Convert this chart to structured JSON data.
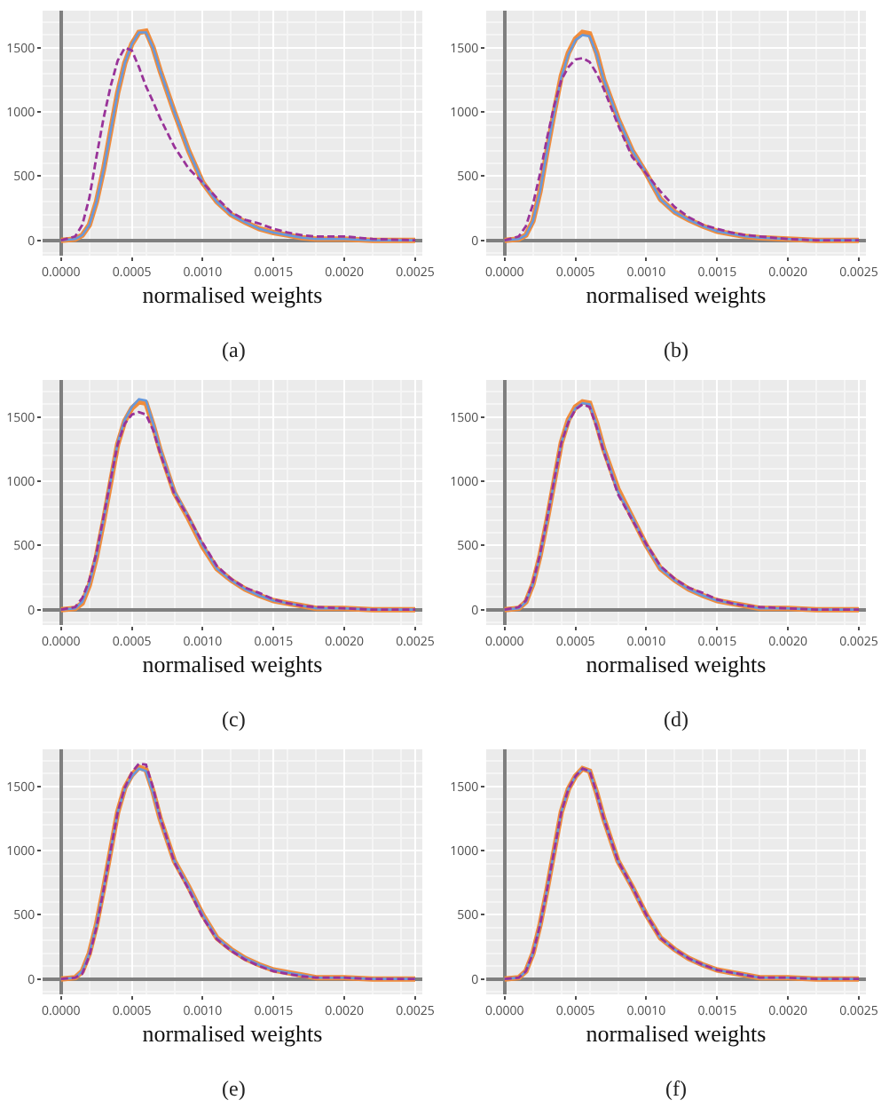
{
  "chart_data": [
    {
      "type": "line",
      "xlabel": "normalised weights",
      "annotations": [
        "(a)"
      ],
      "grid": true,
      "xlim": [
        -0.00013,
        0.00255
      ],
      "ylim": [
        -120,
        1790
      ],
      "xticks": [
        {
          "value": 0,
          "label": "0.0000"
        },
        {
          "value": 0.0005,
          "label": "0.0005"
        },
        {
          "value": 0.001,
          "label": "0.0010"
        },
        {
          "value": 0.0015,
          "label": "0.0015"
        },
        {
          "value": 0.002,
          "label": "0.0020"
        },
        {
          "value": 0.0025,
          "label": "0.0025"
        }
      ],
      "yticks": [
        0,
        500,
        1000,
        1500
      ],
      "x": [
        0,
        0.0001,
        0.00015,
        0.0002,
        0.00025,
        0.0003,
        0.00035,
        0.0004,
        0.00045,
        0.0005,
        0.00055,
        0.0006,
        0.00065,
        0.0007,
        0.0008,
        0.0009,
        0.001,
        0.0011,
        0.0012,
        0.0013,
        0.0014,
        0.0015,
        0.0016,
        0.0017,
        0.0018,
        0.002,
        0.0022,
        0.0025
      ],
      "series": [
        {
          "color": "#f08c3c",
          "line_style": "solid",
          "values": [
            0,
            10,
            40,
            120,
            300,
            550,
            850,
            1150,
            1380,
            1530,
            1620,
            1630,
            1500,
            1320,
            1000,
            700,
            450,
            300,
            200,
            140,
            90,
            60,
            40,
            20,
            10,
            10,
            0,
            0
          ]
        },
        {
          "color": "#6699dd",
          "line_style": "solid",
          "values": [
            0,
            10,
            40,
            120,
            300,
            550,
            850,
            1150,
            1380,
            1530,
            1620,
            1620,
            1500,
            1320,
            1000,
            700,
            450,
            300,
            200,
            140,
            90,
            60,
            40,
            20,
            10,
            10,
            0,
            0
          ]
        },
        {
          "color": "#993399",
          "line_style": "dashed",
          "values": [
            0,
            30,
            120,
            330,
            650,
            950,
            1200,
            1400,
            1500,
            1480,
            1350,
            1200,
            1080,
            950,
            730,
            560,
            450,
            330,
            220,
            160,
            130,
            90,
            60,
            40,
            30,
            30,
            10,
            0
          ]
        }
      ]
    },
    {
      "type": "line",
      "xlabel": "normalised weights",
      "annotations": [
        "(b)"
      ],
      "grid": true,
      "xlim": [
        -0.00013,
        0.00255
      ],
      "ylim": [
        -120,
        1790
      ],
      "xticks": [
        {
          "value": 0,
          "label": "0.0000"
        },
        {
          "value": 0.0005,
          "label": "0.0005"
        },
        {
          "value": 0.001,
          "label": "0.0010"
        },
        {
          "value": 0.0015,
          "label": "0.0015"
        },
        {
          "value": 0.002,
          "label": "0.0020"
        },
        {
          "value": 0.0025,
          "label": "0.0025"
        }
      ],
      "yticks": [
        0,
        500,
        1000,
        1500
      ],
      "x": [
        0,
        0.0001,
        0.00015,
        0.0002,
        0.00025,
        0.0003,
        0.00035,
        0.0004,
        0.00045,
        0.0005,
        0.00055,
        0.0006,
        0.00065,
        0.0007,
        0.0008,
        0.0009,
        0.001,
        0.0011,
        0.0012,
        0.0013,
        0.0014,
        0.0015,
        0.0016,
        0.0017,
        0.0018,
        0.002,
        0.0022,
        0.0025
      ],
      "series": [
        {
          "color": "#f08c3c",
          "line_style": "solid",
          "values": [
            0,
            10,
            40,
            150,
            380,
            700,
            1000,
            1280,
            1460,
            1570,
            1620,
            1610,
            1460,
            1250,
            950,
            700,
            520,
            320,
            220,
            160,
            110,
            70,
            50,
            30,
            20,
            10,
            0,
            0
          ]
        },
        {
          "color": "#6699dd",
          "line_style": "solid",
          "values": [
            0,
            10,
            40,
            150,
            380,
            700,
            1000,
            1270,
            1450,
            1560,
            1600,
            1590,
            1450,
            1250,
            950,
            700,
            520,
            320,
            220,
            160,
            110,
            70,
            50,
            30,
            20,
            10,
            0,
            0
          ]
        },
        {
          "color": "#993399",
          "line_style": "dashed",
          "values": [
            0,
            30,
            110,
            280,
            520,
            800,
            1050,
            1250,
            1350,
            1410,
            1420,
            1390,
            1300,
            1180,
            900,
            650,
            520,
            380,
            260,
            180,
            120,
            90,
            60,
            40,
            30,
            10,
            0,
            0
          ]
        }
      ]
    },
    {
      "type": "line",
      "xlabel": "normalised weights",
      "annotations": [
        "(c)"
      ],
      "grid": true,
      "xlim": [
        -0.00013,
        0.00255
      ],
      "ylim": [
        -120,
        1790
      ],
      "xticks": [
        {
          "value": 0,
          "label": "0.0000"
        },
        {
          "value": 0.0005,
          "label": "0.0005"
        },
        {
          "value": 0.001,
          "label": "0.0010"
        },
        {
          "value": 0.0015,
          "label": "0.0015"
        },
        {
          "value": 0.002,
          "label": "0.0020"
        },
        {
          "value": 0.0025,
          "label": "0.0025"
        }
      ],
      "yticks": [
        0,
        500,
        1000,
        1500
      ],
      "x": [
        0,
        0.0001,
        0.00015,
        0.0002,
        0.00025,
        0.0003,
        0.00035,
        0.0004,
        0.00045,
        0.0005,
        0.00055,
        0.0006,
        0.00065,
        0.0007,
        0.0008,
        0.0009,
        0.001,
        0.0011,
        0.0012,
        0.0013,
        0.0014,
        0.0015,
        0.0016,
        0.0017,
        0.0018,
        0.002,
        0.0022,
        0.0025
      ],
      "series": [
        {
          "color": "#f08c3c",
          "line_style": "solid",
          "values": [
            0,
            10,
            50,
            190,
            410,
            690,
            990,
            1290,
            1470,
            1570,
            1620,
            1610,
            1440,
            1240,
            910,
            710,
            490,
            320,
            230,
            160,
            110,
            70,
            50,
            30,
            10,
            10,
            0,
            0
          ]
        },
        {
          "color": "#6699dd",
          "line_style": "solid",
          "values": [
            0,
            10,
            60,
            200,
            420,
            700,
            1000,
            1300,
            1480,
            1580,
            1640,
            1630,
            1450,
            1250,
            920,
            720,
            500,
            320,
            230,
            160,
            110,
            70,
            50,
            30,
            10,
            10,
            0,
            0
          ]
        },
        {
          "color": "#993399",
          "line_style": "dashed",
          "values": [
            0,
            20,
            90,
            230,
            440,
            720,
            1010,
            1290,
            1450,
            1520,
            1540,
            1520,
            1400,
            1220,
            900,
            720,
            520,
            340,
            240,
            170,
            130,
            80,
            50,
            30,
            20,
            10,
            0,
            0
          ]
        }
      ]
    },
    {
      "type": "line",
      "xlabel": "normalised weights",
      "annotations": [
        "(d)"
      ],
      "grid": true,
      "xlim": [
        -0.00013,
        0.00255
      ],
      "ylim": [
        -120,
        1790
      ],
      "xticks": [
        {
          "value": 0,
          "label": "0.0000"
        },
        {
          "value": 0.0005,
          "label": "0.0005"
        },
        {
          "value": 0.001,
          "label": "0.0010"
        },
        {
          "value": 0.0015,
          "label": "0.0015"
        },
        {
          "value": 0.002,
          "label": "0.0020"
        },
        {
          "value": 0.0025,
          "label": "0.0025"
        }
      ],
      "yticks": [
        0,
        500,
        1000,
        1500
      ],
      "x": [
        0,
        0.0001,
        0.00015,
        0.0002,
        0.00025,
        0.0003,
        0.00035,
        0.0004,
        0.00045,
        0.0005,
        0.00055,
        0.0006,
        0.00065,
        0.0007,
        0.0008,
        0.0009,
        0.001,
        0.0011,
        0.0012,
        0.0013,
        0.0014,
        0.0015,
        0.0016,
        0.0017,
        0.0018,
        0.002,
        0.0022,
        0.0025
      ],
      "series": [
        {
          "color": "#f08c3c",
          "line_style": "solid",
          "values": [
            0,
            10,
            60,
            200,
            420,
            700,
            1000,
            1300,
            1480,
            1580,
            1620,
            1610,
            1450,
            1250,
            940,
            720,
            500,
            320,
            230,
            160,
            110,
            70,
            50,
            30,
            10,
            10,
            0,
            0
          ]
        },
        {
          "color": "#6699dd",
          "line_style": "solid",
          "values": [
            0,
            10,
            60,
            200,
            420,
            700,
            1000,
            1300,
            1470,
            1570,
            1610,
            1600,
            1440,
            1250,
            920,
            720,
            500,
            320,
            230,
            160,
            110,
            70,
            50,
            30,
            10,
            10,
            0,
            0
          ]
        },
        {
          "color": "#993399",
          "line_style": "dashed",
          "values": [
            0,
            20,
            70,
            210,
            430,
            710,
            1010,
            1300,
            1460,
            1560,
            1600,
            1580,
            1420,
            1230,
            900,
            700,
            510,
            340,
            240,
            170,
            130,
            80,
            50,
            30,
            20,
            10,
            0,
            0
          ]
        }
      ]
    },
    {
      "type": "line",
      "xlabel": "normalised weights",
      "annotations": [
        "(e)"
      ],
      "grid": true,
      "xlim": [
        -0.00013,
        0.00255
      ],
      "ylim": [
        -120,
        1790
      ],
      "xticks": [
        {
          "value": 0,
          "label": "0.0000"
        },
        {
          "value": 0.0005,
          "label": "0.0005"
        },
        {
          "value": 0.001,
          "label": "0.0010"
        },
        {
          "value": 0.0015,
          "label": "0.0015"
        },
        {
          "value": 0.002,
          "label": "0.0020"
        },
        {
          "value": 0.0025,
          "label": "0.0025"
        }
      ],
      "yticks": [
        0,
        500,
        1000,
        1500
      ],
      "x": [
        0,
        0.0001,
        0.00015,
        0.0002,
        0.00025,
        0.0003,
        0.00035,
        0.0004,
        0.00045,
        0.0005,
        0.00055,
        0.0006,
        0.00065,
        0.0007,
        0.0008,
        0.0009,
        0.001,
        0.0011,
        0.0012,
        0.0013,
        0.0014,
        0.0015,
        0.0016,
        0.0017,
        0.0018,
        0.002,
        0.0022,
        0.0025
      ],
      "series": [
        {
          "color": "#f08c3c",
          "line_style": "solid",
          "values": [
            0,
            10,
            60,
            200,
            420,
            700,
            1000,
            1300,
            1490,
            1590,
            1650,
            1630,
            1460,
            1250,
            920,
            720,
            500,
            320,
            230,
            160,
            110,
            70,
            50,
            30,
            10,
            10,
            0,
            0
          ]
        },
        {
          "color": "#6699dd",
          "line_style": "solid",
          "values": [
            0,
            10,
            60,
            200,
            420,
            700,
            1000,
            1300,
            1480,
            1580,
            1640,
            1620,
            1450,
            1250,
            920,
            720,
            500,
            320,
            230,
            160,
            110,
            70,
            50,
            30,
            10,
            10,
            0,
            0
          ]
        },
        {
          "color": "#993399",
          "line_style": "dashed",
          "values": [
            0,
            10,
            40,
            180,
            400,
            690,
            1000,
            1300,
            1490,
            1610,
            1680,
            1670,
            1490,
            1260,
            910,
            700,
            480,
            310,
            220,
            150,
            100,
            60,
            40,
            20,
            10,
            10,
            0,
            0
          ]
        }
      ]
    },
    {
      "type": "line",
      "xlabel": "normalised weights",
      "annotations": [
        "(f)"
      ],
      "grid": true,
      "xlim": [
        -0.00013,
        0.00255
      ],
      "ylim": [
        -120,
        1790
      ],
      "xticks": [
        {
          "value": 0,
          "label": "0.0000"
        },
        {
          "value": 0.0005,
          "label": "0.0005"
        },
        {
          "value": 0.001,
          "label": "0.0010"
        },
        {
          "value": 0.0015,
          "label": "0.0015"
        },
        {
          "value": 0.002,
          "label": "0.0020"
        },
        {
          "value": 0.0025,
          "label": "0.0025"
        }
      ],
      "yticks": [
        0,
        500,
        1000,
        1500
      ],
      "x": [
        0,
        0.0001,
        0.00015,
        0.0002,
        0.00025,
        0.0003,
        0.00035,
        0.0004,
        0.00045,
        0.0005,
        0.00055,
        0.0006,
        0.00065,
        0.0007,
        0.0008,
        0.0009,
        0.001,
        0.0011,
        0.0012,
        0.0013,
        0.0014,
        0.0015,
        0.0016,
        0.0017,
        0.0018,
        0.002,
        0.0022,
        0.0025
      ],
      "series": [
        {
          "color": "#f08c3c",
          "line_style": "solid",
          "values": [
            0,
            10,
            60,
            200,
            420,
            700,
            1000,
            1300,
            1480,
            1580,
            1640,
            1620,
            1450,
            1250,
            920,
            720,
            500,
            320,
            230,
            160,
            110,
            70,
            50,
            30,
            10,
            10,
            0,
            0
          ]
        },
        {
          "color": "#6699dd",
          "line_style": "solid",
          "values": [
            0,
            10,
            60,
            200,
            420,
            700,
            1000,
            1300,
            1480,
            1580,
            1640,
            1620,
            1450,
            1250,
            920,
            720,
            500,
            320,
            230,
            160,
            110,
            70,
            50,
            30,
            10,
            10,
            0,
            0
          ]
        },
        {
          "color": "#993399",
          "line_style": "dashed",
          "values": [
            0,
            10,
            60,
            200,
            420,
            700,
            1000,
            1300,
            1480,
            1580,
            1640,
            1620,
            1450,
            1250,
            920,
            720,
            500,
            320,
            230,
            160,
            110,
            70,
            50,
            30,
            10,
            10,
            0,
            0
          ]
        }
      ]
    }
  ]
}
